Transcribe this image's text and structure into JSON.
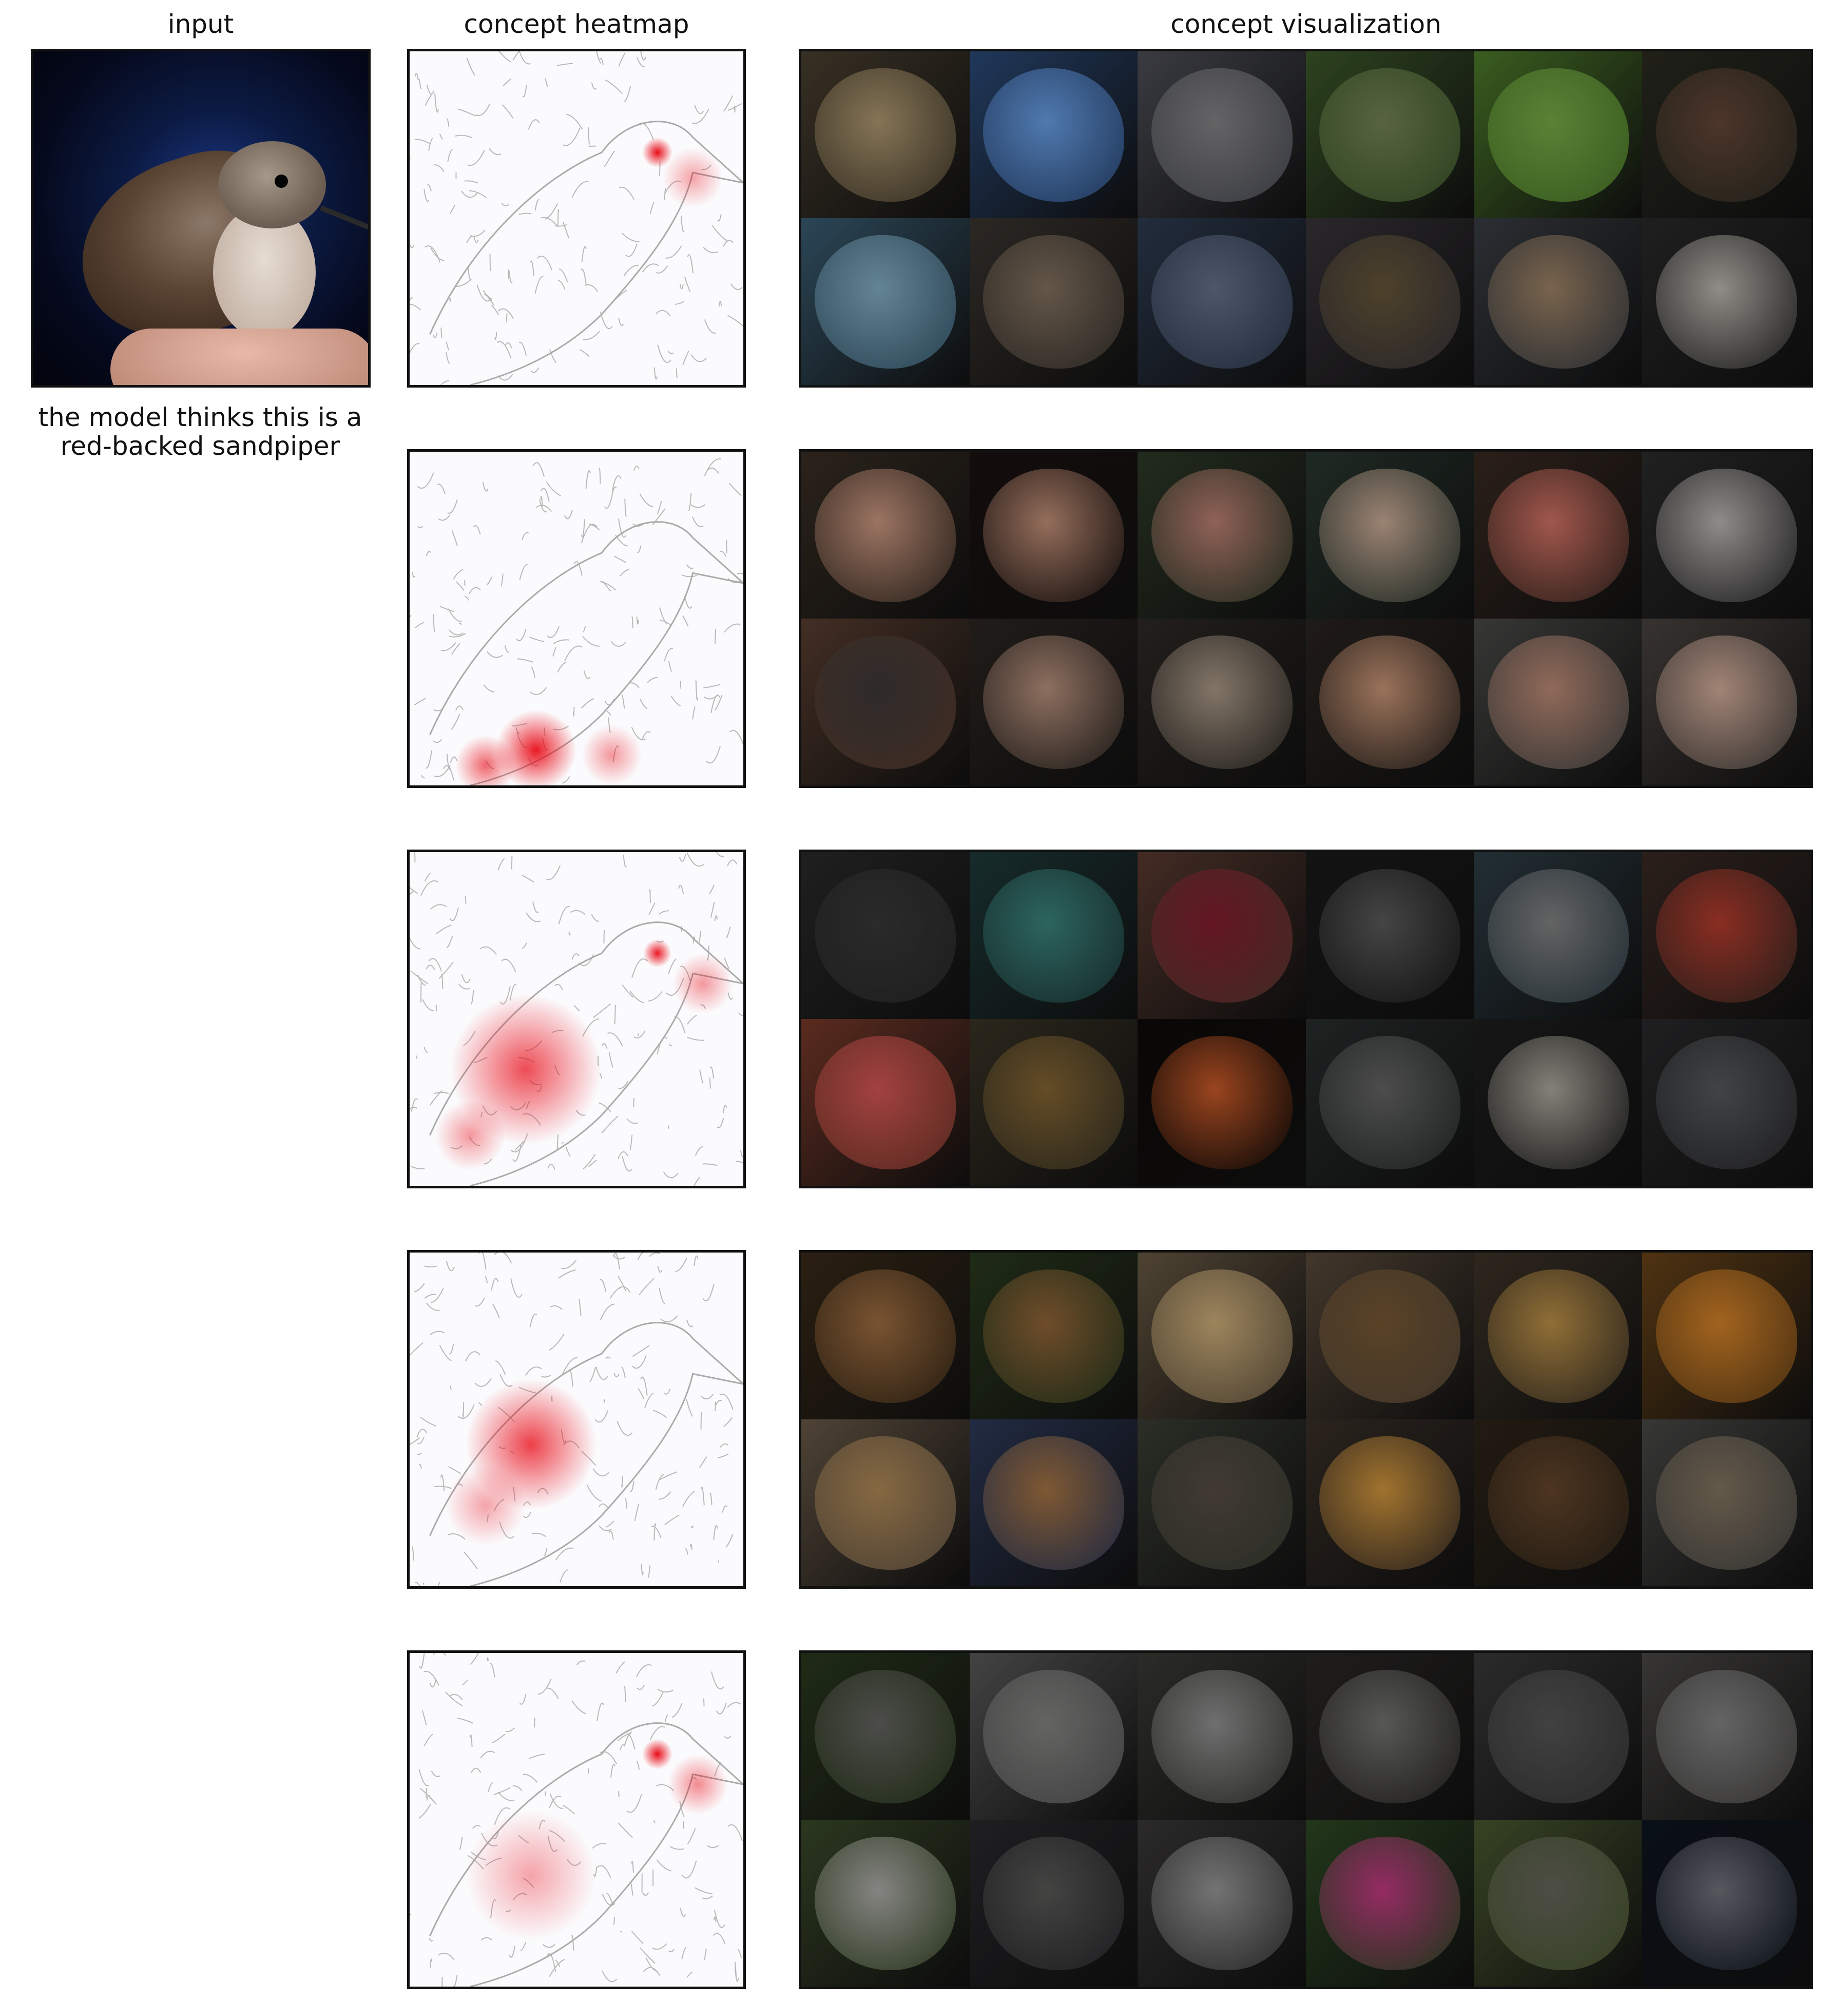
{
  "column_titles": {
    "input": "input",
    "heatmap": "concept heatmap",
    "visualization": "concept visualization"
  },
  "caption": {
    "line1": "the model thinks this is a",
    "line2": "red-backed sandpiper"
  },
  "concept_rows": [
    {
      "heatmap_focus": "eye-and-beak",
      "tiles": [
        "#4a4030",
        "#2b4b7a",
        "#4e5058",
        "#3d5a2a",
        "#4e7d2a",
        "#2c2c22",
        "#3a5e74",
        "#3b3530",
        "#2e3c52",
        "#39353a",
        "#3a3e44",
        "#2a2a2a"
      ],
      "blobs": [
        "#b9a277",
        "#6fa8f2",
        "#8a8a8c",
        "#7a8a5a",
        "#7bb34a",
        "#6a4a3a",
        "#8ab7cc",
        "#8a7864",
        "#6c7890",
        "#6a5a3a",
        "#a88a6a",
        "#c9c4bc"
      ]
    },
    {
      "heatmap_focus": "fingers",
      "tiles": [
        "#3a2e24",
        "#1a1210",
        "#2e3a28",
        "#2a3830",
        "#3a2a22",
        "#2c2c2c",
        "#5a3e30",
        "#2c2622",
        "#2e2a26",
        "#2a2420",
        "#4a4a48",
        "#4a4440"
      ],
      "blobs": [
        "#d9a28a",
        "#d09a80",
        "#c9877a",
        "#d8b6a0",
        "#e0786a",
        "#c7c2c0",
        "#3e3a3a",
        "#c59c86",
        "#b6a490",
        "#d8a07e",
        "#c9927c",
        "#e0b8a4"
      ]
    },
    {
      "heatmap_focus": "wing-and-beak",
      "tiles": [
        "#2a2a2a",
        "#1e3a3a",
        "#5a3a30",
        "#1a1a1a",
        "#2e3e46",
        "#3a2a24",
        "#7a3a2a",
        "#3a3426",
        "#0e0a08",
        "#2a2e2e",
        "#1e1e1e",
        "#2a2a2c"
      ],
      "blobs": [
        "#3a3a3a",
        "#3e8c84",
        "#8a1e30",
        "#606060",
        "#8a8a8a",
        "#c03e2e",
        "#e05a5a",
        "#8a6a34",
        "#d8602a",
        "#6a6a6a",
        "#b8b4a8",
        "#5a5e62"
      ]
    },
    {
      "heatmap_focus": "wing",
      "tiles": [
        "#3a2a18",
        "#2a3a1e",
        "#6a5a44",
        "#5a4a3a",
        "#3e3428",
        "#6a4418",
        "#6a5a48",
        "#2e3a5a",
        "#3a3e34",
        "#3a3028",
        "#2e2418",
        "#4a4a48"
      ],
      "blobs": [
        "#a87444",
        "#9a6a3a",
        "#d8b880",
        "#7a5a34",
        "#c89a4a",
        "#e08a2a",
        "#b8905a",
        "#b07a44",
        "#5a5046",
        "#e0a040",
        "#6a4a2e",
        "#8a7a64"
      ]
    },
    {
      "heatmap_focus": "eye-and-body",
      "tiles": [
        "#2a3a1e",
        "#5a5a5a",
        "#3a3a36",
        "#2a2826",
        "#3a3a3a",
        "#4a4846",
        "#3a4a2a",
        "#2a2a2e",
        "#3a3838",
        "#2e4a24",
        "#4a5a30",
        "#0e1620"
      ],
      "blobs": [
        "#6a6a66",
        "#8a8a88",
        "#9a9a9a",
        "#7a7a78",
        "#5a5a5a",
        "#8a8a8a",
        "#b8b8b4",
        "#5e5e5c",
        "#a0a0a0",
        "#d03a8a",
        "#6a6a60",
        "#7a7a84"
      ]
    }
  ]
}
